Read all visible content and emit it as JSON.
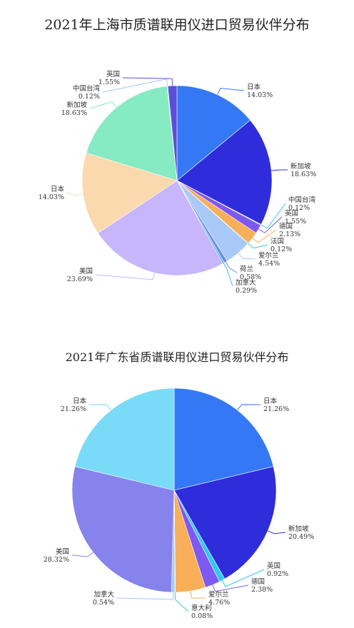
{
  "chart_data": [
    {
      "type": "pie",
      "title": "2021年上海市质谱联用仪进口贸易伙伴分布",
      "slices": [
        {
          "label": "日本",
          "value": 14.03,
          "pct": "14.03%",
          "color": "#3478F6"
        },
        {
          "label": "新加坡",
          "value": 18.63,
          "pct": "18.63%",
          "color": "#2F2CDB"
        },
        {
          "label": "中国台湾",
          "value": 0.12,
          "pct": "0.12%",
          "color": "#30C9F0"
        },
        {
          "label": "英国",
          "value": 1.55,
          "pct": "1.55%",
          "color": "#7D58F1"
        },
        {
          "label": "德国",
          "value": 2.13,
          "pct": "2.13%",
          "color": "#F9AE5A"
        },
        {
          "label": "法国",
          "value": 0.12,
          "pct": "0.12%",
          "color": "#3ECFA6"
        },
        {
          "label": "爱尔兰",
          "value": 4.54,
          "pct": "4.54%",
          "color": "#A9C9F8"
        },
        {
          "label": "荷兰",
          "value": 0.58,
          "pct": "0.58%",
          "color": "#6C8BE0"
        },
        {
          "label": "加拿大",
          "value": 0.29,
          "pct": "0.29%",
          "color": "#45B8E8"
        },
        {
          "label": "美国",
          "value": 23.69,
          "pct": "23.69%",
          "color": "#C8B6FA"
        },
        {
          "label": "日本",
          "value": 14.03,
          "pct": "14.03%",
          "color": "#FBD9AE"
        },
        {
          "label": "新加坡",
          "value": 18.63,
          "pct": "18.63%",
          "color": "#86EAC3"
        },
        {
          "label": "中国台湾",
          "value": 0.12,
          "pct": "0.12%",
          "color": "#A5C8F8"
        },
        {
          "label": "英国",
          "value": 1.55,
          "pct": "1.55%",
          "color": "#5A4FD8"
        }
      ]
    },
    {
      "type": "pie",
      "title": "2021年广东省质谱联用仪进口贸易伙伴分布",
      "slices": [
        {
          "label": "日本",
          "value": 21.26,
          "pct": "21.26%",
          "color": "#3478F6"
        },
        {
          "label": "新加坡",
          "value": 20.49,
          "pct": "20.49%",
          "color": "#2F2CDB"
        },
        {
          "label": "英国",
          "value": 0.92,
          "pct": "0.92%",
          "color": "#30C9F0"
        },
        {
          "label": "德国",
          "value": 2.38,
          "pct": "2.38%",
          "color": "#7D58F1"
        },
        {
          "label": "爱尔兰",
          "value": 4.76,
          "pct": "4.76%",
          "color": "#F9AE5A"
        },
        {
          "label": "意大利",
          "value": 0.08,
          "pct": "0.08%",
          "color": "#3ECFA6"
        },
        {
          "label": "加拿大",
          "value": 0.54,
          "pct": "0.54%",
          "color": "#A5C8F8"
        },
        {
          "label": "美国",
          "value": 28.32,
          "pct": "28.32%",
          "color": "#8783EC"
        },
        {
          "label": "日本",
          "value": 21.26,
          "pct": "21.26%",
          "color": "#7ADBF8"
        }
      ]
    }
  ]
}
